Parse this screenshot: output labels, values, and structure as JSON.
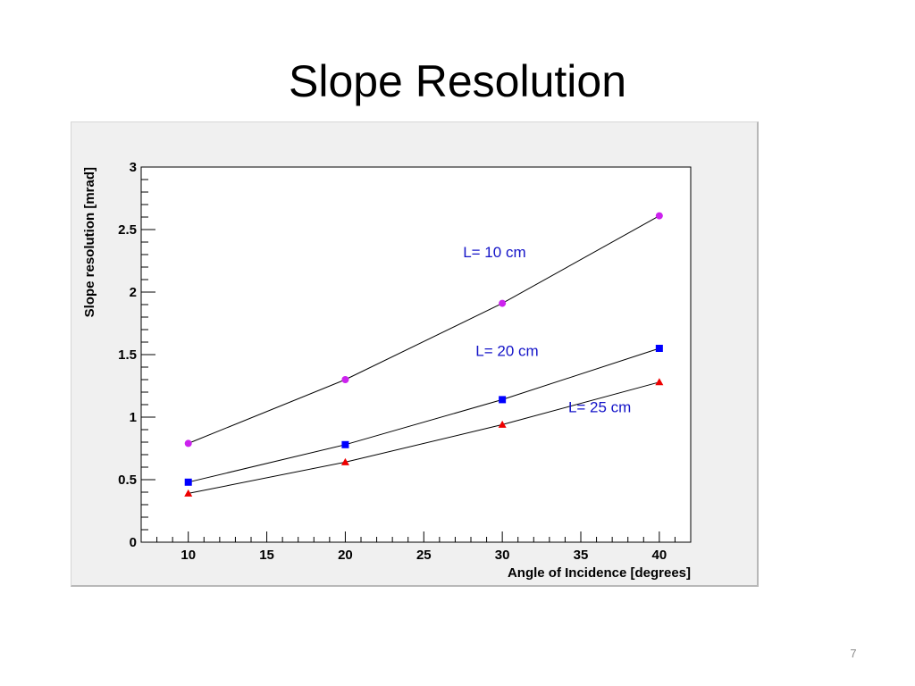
{
  "slide": {
    "title": "Slope Resolution",
    "page_number": "7"
  },
  "chart_data": {
    "type": "line",
    "title": "",
    "xlabel": "Angle of Incidence [degrees]",
    "ylabel": "Slope resolution [mrad]",
    "xlim": [
      7,
      42
    ],
    "ylim": [
      0,
      3
    ],
    "x_ticks": [
      10,
      15,
      20,
      25,
      30,
      35,
      40
    ],
    "y_ticks": [
      0,
      0.5,
      1,
      1.5,
      2,
      2.5,
      3
    ],
    "x_tick_labels": [
      "10",
      "15",
      "20",
      "25",
      "30",
      "35",
      "40"
    ],
    "y_tick_labels": [
      "0",
      "0.5",
      "1",
      "1.5",
      "2",
      "2.5",
      "3"
    ],
    "grid": false,
    "series": [
      {
        "name": "L= 10 cm",
        "x": [
          10,
          20,
          30,
          40
        ],
        "values": [
          0.79,
          1.3,
          1.91,
          2.61
        ],
        "marker": "circle",
        "color": "#cc22ee"
      },
      {
        "name": "L= 20 cm",
        "x": [
          10,
          20,
          30,
          40
        ],
        "values": [
          0.48,
          0.78,
          1.14,
          1.55
        ],
        "marker": "square",
        "color": "#0000ff"
      },
      {
        "name": "L= 25 cm",
        "x": [
          10,
          20,
          30,
          40
        ],
        "values": [
          0.39,
          0.64,
          0.94,
          1.28
        ],
        "marker": "triangle",
        "color": "#ee0000"
      }
    ],
    "annotations": [
      {
        "text": "L= 10 cm",
        "x": 27.5,
        "y": 2.28
      },
      {
        "text": "L= 20 cm",
        "x": 28.3,
        "y": 1.49
      },
      {
        "text": "L= 25 cm",
        "x": 34.2,
        "y": 1.04
      }
    ],
    "line_color": "#000000",
    "annotation_color": "#1414c8"
  }
}
